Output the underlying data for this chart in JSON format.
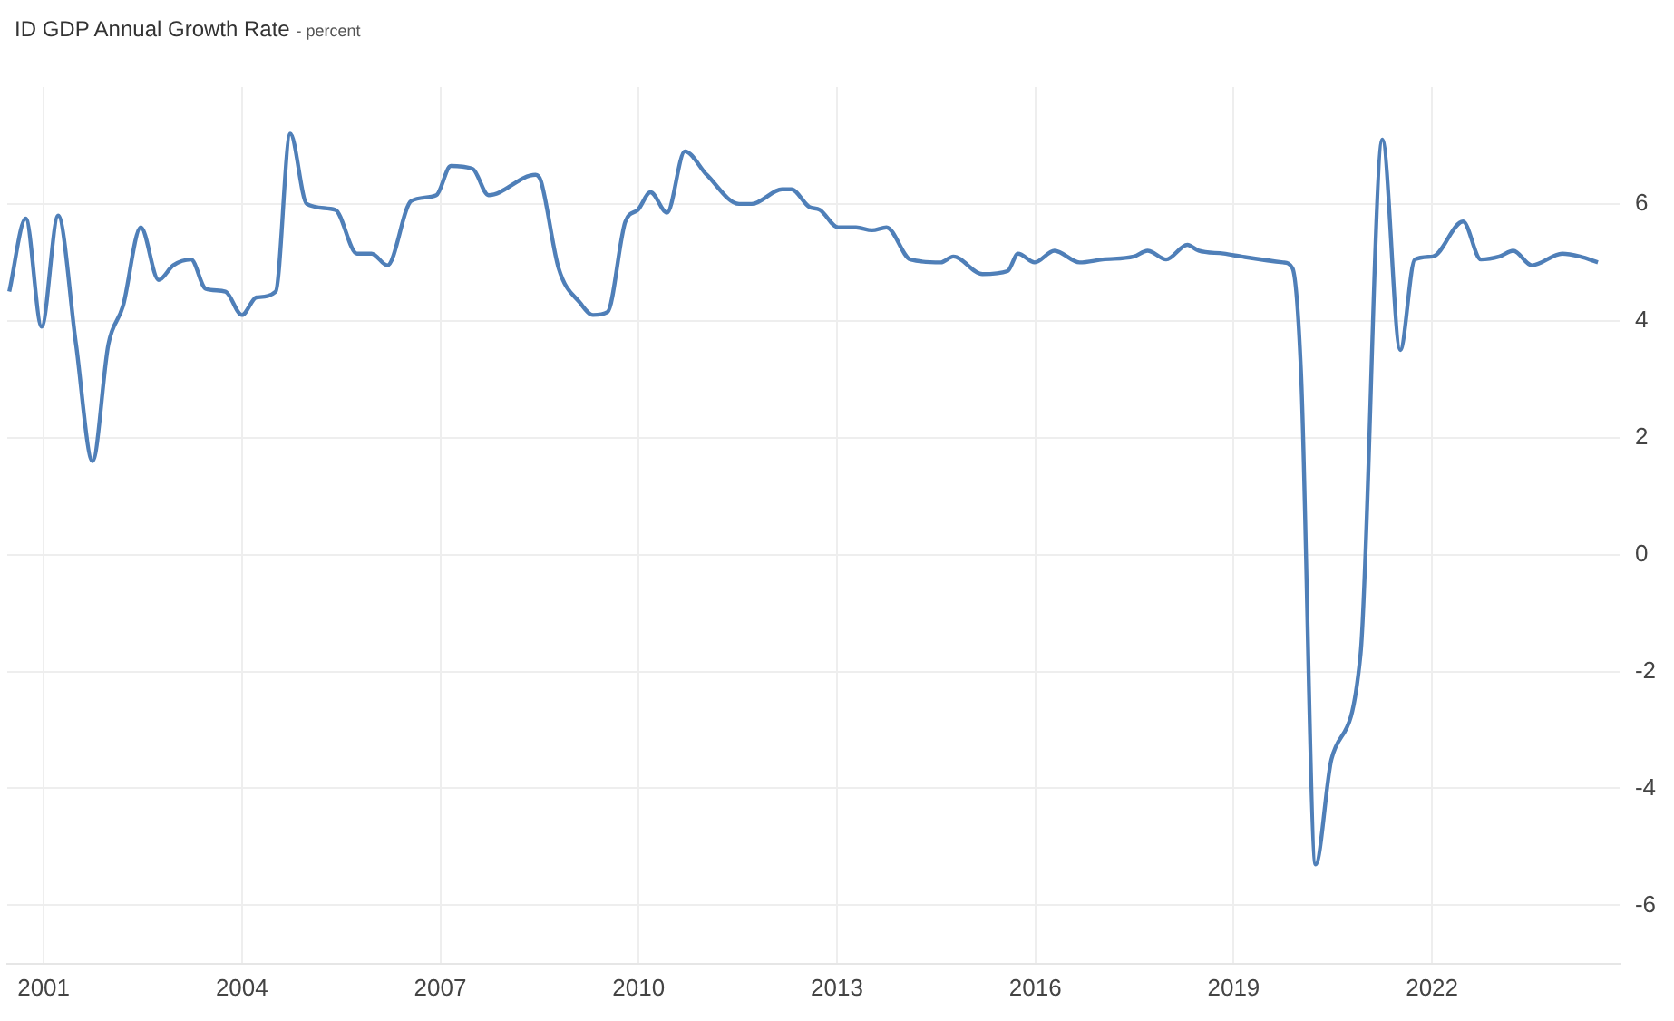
{
  "chart_data": {
    "type": "line",
    "title": "ID GDP Annual Growth Rate",
    "subtitle": "- percent",
    "x": [
      2000.48,
      2000.73,
      2000.97,
      2001.22,
      2001.49,
      2001.74,
      2001.98,
      2002.2,
      2002.47,
      2002.74,
      2002.96,
      2003.23,
      2003.45,
      2003.75,
      2004.0,
      2004.22,
      2004.51,
      2004.73,
      2004.98,
      2005.41,
      2005.74,
      2005.96,
      2006.2,
      2006.56,
      2006.94,
      2007.16,
      2007.49,
      2007.73,
      2008.44,
      2008.52,
      2008.79,
      2009.12,
      2009.31,
      2009.53,
      2009.8,
      2009.99,
      2010.18,
      2010.43,
      2010.7,
      2011.03,
      2011.52,
      2011.71,
      2012.17,
      2012.31,
      2012.58,
      2012.74,
      2013.02,
      2013.29,
      2013.53,
      2013.75,
      2014.11,
      2014.57,
      2014.76,
      2015.2,
      2015.58,
      2015.74,
      2015.99,
      2016.29,
      2016.67,
      2017.02,
      2017.49,
      2017.7,
      2017.98,
      2018.3,
      2018.47,
      2018.85,
      2019.12,
      2019.75,
      2019.89,
      2020.02,
      2020.24,
      2020.48,
      2020.92,
      2021.25,
      2021.52,
      2021.74,
      2022.01,
      2022.47,
      2022.74,
      2023.02,
      2023.23,
      2023.51,
      2023.97,
      2024.24,
      2024.51
    ],
    "series": [
      {
        "color": "#4f7fb8",
        "values": [
          4.5,
          5.75,
          3.9,
          5.8,
          3.6,
          1.6,
          3.6,
          4.25,
          5.6,
          4.7,
          4.95,
          5.05,
          4.55,
          4.5,
          4.1,
          4.4,
          4.5,
          7.2,
          6.0,
          5.9,
          5.15,
          5.15,
          4.95,
          6.05,
          6.15,
          6.65,
          6.6,
          6.15,
          6.5,
          6.4,
          4.9,
          4.3,
          4.1,
          4.15,
          5.7,
          5.9,
          6.2,
          5.85,
          6.9,
          6.5,
          6.0,
          6.0,
          6.25,
          6.25,
          5.95,
          5.9,
          5.6,
          5.6,
          5.55,
          5.6,
          5.05,
          5.0,
          5.1,
          4.8,
          4.85,
          5.15,
          5.0,
          5.2,
          5.0,
          5.05,
          5.1,
          5.2,
          5.05,
          5.3,
          5.2,
          5.15,
          5.1,
          5.0,
          4.9,
          3.1,
          -5.3,
          -3.5,
          -1.7,
          7.1,
          3.5,
          5.05,
          5.1,
          5.7,
          5.05,
          5.1,
          5.2,
          4.95,
          5.15,
          5.1,
          5.0
        ]
      }
    ],
    "xlim": [
      2000.45,
      2024.85
    ],
    "xticks": [
      2001,
      2004,
      2007,
      2010,
      2013,
      2016,
      2019,
      2022
    ],
    "ylim": [
      -7,
      8
    ],
    "yticks": [
      -6,
      -4,
      -2,
      0,
      2,
      4,
      6
    ],
    "grid": true,
    "legend": false,
    "marker": "none",
    "line_style": "solid"
  }
}
